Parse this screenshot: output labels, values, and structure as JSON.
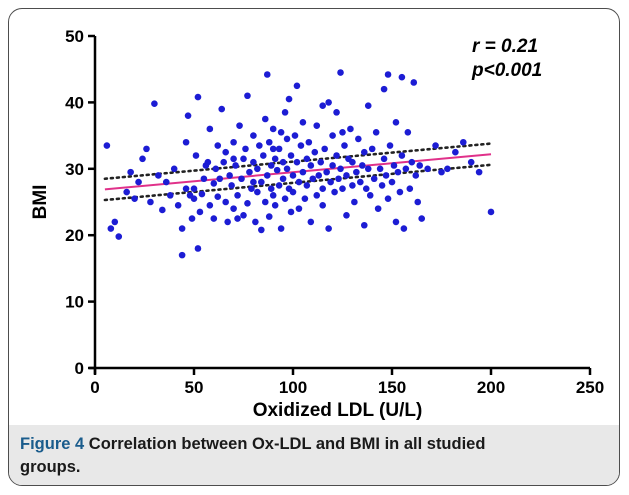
{
  "chart_data": {
    "type": "scatter",
    "xlabel": "Oxidized LDL (U/L)",
    "ylabel": "BMI",
    "xlim": [
      0,
      250
    ],
    "ylim": [
      0,
      50
    ],
    "xticks": [
      "0",
      "50",
      "100",
      "150",
      "200",
      "250"
    ],
    "yticks": [
      "0",
      "10",
      "20",
      "30",
      "40",
      "50"
    ],
    "grid": false,
    "marker_color": "#1c1cd4",
    "fit_color": "#e0318a",
    "ci_color": "#222222",
    "annotations": [
      "r = 0.21",
      "p<0.001"
    ],
    "fit_line": {
      "x": [
        5,
        200
      ],
      "y": [
        26.9,
        32.2
      ]
    },
    "ci_upper": {
      "x": [
        5,
        200
      ],
      "y": [
        28.5,
        33.8
      ]
    },
    "ci_lower": {
      "x": [
        5,
        200
      ],
      "y": [
        25.3,
        30.6
      ]
    },
    "points": [
      [
        6,
        33.5
      ],
      [
        8,
        21.0
      ],
      [
        10,
        22.0
      ],
      [
        12,
        19.8
      ],
      [
        16,
        26.5
      ],
      [
        18,
        29.5
      ],
      [
        20,
        25.5
      ],
      [
        22,
        28.0
      ],
      [
        24,
        31.5
      ],
      [
        26,
        33.0
      ],
      [
        28,
        25.0
      ],
      [
        30,
        39.8
      ],
      [
        32,
        29.0
      ],
      [
        34,
        23.8
      ],
      [
        36,
        28.0
      ],
      [
        38,
        26.0
      ],
      [
        40,
        30.0
      ],
      [
        42,
        24.5
      ],
      [
        44,
        21.0
      ],
      [
        44,
        17.0
      ],
      [
        46,
        27.0
      ],
      [
        46,
        34.0
      ],
      [
        47,
        38.0
      ],
      [
        48,
        26.0
      ],
      [
        49,
        22.5
      ],
      [
        50,
        27.0
      ],
      [
        50,
        25.5
      ],
      [
        51,
        32.0
      ],
      [
        52,
        40.8
      ],
      [
        52,
        18.0
      ],
      [
        53,
        23.5
      ],
      [
        54,
        26.2
      ],
      [
        55,
        28.5
      ],
      [
        56,
        30.5
      ],
      [
        57,
        31.0
      ],
      [
        58,
        24.5
      ],
      [
        58,
        36.0
      ],
      [
        60,
        27.8
      ],
      [
        60,
        22.5
      ],
      [
        61,
        30.0
      ],
      [
        62,
        25.8
      ],
      [
        62,
        33.5
      ],
      [
        63,
        28.5
      ],
      [
        64,
        39.0
      ],
      [
        65,
        31.0
      ],
      [
        66,
        25.0
      ],
      [
        66,
        32.5
      ],
      [
        67,
        22.0
      ],
      [
        68,
        29.0
      ],
      [
        69,
        27.5
      ],
      [
        70,
        34.0
      ],
      [
        70,
        24.0
      ],
      [
        71,
        30.5
      ],
      [
        72,
        22.5
      ],
      [
        72,
        26.0
      ],
      [
        73,
        36.5
      ],
      [
        74,
        28.5
      ],
      [
        75,
        31.5
      ],
      [
        75,
        23.0
      ],
      [
        76,
        33.0
      ],
      [
        77,
        24.8
      ],
      [
        77,
        41.0
      ],
      [
        78,
        29.5
      ],
      [
        79,
        27.0
      ],
      [
        80,
        31.0
      ],
      [
        80,
        35.0
      ],
      [
        81,
        22.0
      ],
      [
        82,
        26.5
      ],
      [
        82,
        30.0
      ],
      [
        83,
        33.5
      ],
      [
        84,
        20.8
      ],
      [
        84,
        28.0
      ],
      [
        85,
        32.0
      ],
      [
        86,
        37.5
      ],
      [
        86,
        25.0
      ],
      [
        87,
        44.2
      ],
      [
        87,
        29.0
      ],
      [
        88,
        34.0
      ],
      [
        88,
        22.8
      ],
      [
        89,
        30.5
      ],
      [
        89,
        27.0
      ],
      [
        90,
        36.0
      ],
      [
        90,
        26.0
      ],
      [
        91,
        31.5
      ],
      [
        91,
        24.5
      ],
      [
        92,
        29.8
      ],
      [
        93,
        33.0
      ],
      [
        93,
        27.5
      ],
      [
        94,
        35.5
      ],
      [
        94,
        21.0
      ],
      [
        95,
        28.5
      ],
      [
        95,
        31.0
      ],
      [
        96,
        38.5
      ],
      [
        96,
        25.5
      ],
      [
        97,
        30.0
      ],
      [
        97,
        34.5
      ],
      [
        98,
        27.0
      ],
      [
        98,
        40.5
      ],
      [
        99,
        23.5
      ],
      [
        99,
        32.0
      ],
      [
        100,
        29.0
      ],
      [
        100,
        26.5
      ],
      [
        101,
        35.0
      ],
      [
        102,
        31.0
      ],
      [
        102,
        42.5
      ],
      [
        103,
        28.0
      ],
      [
        103,
        24.0
      ],
      [
        104,
        33.5
      ],
      [
        105,
        29.5
      ],
      [
        105,
        37.0
      ],
      [
        106,
        25.5
      ],
      [
        107,
        31.5
      ],
      [
        107,
        27.5
      ],
      [
        108,
        34.0
      ],
      [
        109,
        22.0
      ],
      [
        109,
        30.5
      ],
      [
        110,
        28.5
      ],
      [
        111,
        32.5
      ],
      [
        112,
        26.0
      ],
      [
        112,
        36.5
      ],
      [
        113,
        29.0
      ],
      [
        114,
        31.0
      ],
      [
        115,
        24.5
      ],
      [
        115,
        27.0
      ],
      [
        116,
        33.0
      ],
      [
        117,
        29.5
      ],
      [
        118,
        40.0
      ],
      [
        118,
        21.0
      ],
      [
        119,
        28.0
      ],
      [
        120,
        35.0
      ],
      [
        120,
        30.5
      ],
      [
        121,
        26.5
      ],
      [
        122,
        32.0
      ],
      [
        122,
        38.5
      ],
      [
        123,
        28.5
      ],
      [
        124,
        30.0
      ],
      [
        124,
        44.5
      ],
      [
        125,
        27.0
      ],
      [
        126,
        33.5
      ],
      [
        127,
        29.0
      ],
      [
        127,
        23.0
      ],
      [
        128,
        31.5
      ],
      [
        129,
        36.0
      ],
      [
        130,
        27.5
      ],
      [
        130,
        31.0
      ],
      [
        131,
        25.0
      ],
      [
        132,
        29.5
      ],
      [
        133,
        34.5
      ],
      [
        134,
        28.0
      ],
      [
        135,
        30.5
      ],
      [
        136,
        32.5
      ],
      [
        136,
        21.5
      ],
      [
        137,
        27.0
      ],
      [
        138,
        39.5
      ],
      [
        138,
        30.0
      ],
      [
        139,
        26.0
      ],
      [
        140,
        33.0
      ],
      [
        141,
        28.5
      ],
      [
        142,
        35.5
      ],
      [
        143,
        24.0
      ],
      [
        144,
        30.0
      ],
      [
        145,
        27.5
      ],
      [
        146,
        42.0
      ],
      [
        146,
        31.5
      ],
      [
        147,
        29.0
      ],
      [
        148,
        44.2
      ],
      [
        148,
        25.5
      ],
      [
        149,
        33.5
      ],
      [
        150,
        28.0
      ],
      [
        151,
        30.5
      ],
      [
        152,
        37.0
      ],
      [
        152,
        22.0
      ],
      [
        153,
        29.5
      ],
      [
        154,
        26.5
      ],
      [
        155,
        43.8
      ],
      [
        155,
        32.0
      ],
      [
        156,
        21.0
      ],
      [
        157,
        30.0
      ],
      [
        158,
        35.5
      ],
      [
        159,
        27.0
      ],
      [
        160,
        31.0
      ],
      [
        161,
        43.0
      ],
      [
        162,
        29.0
      ],
      [
        163,
        25.0
      ],
      [
        164,
        30.5
      ],
      [
        165,
        22.5
      ],
      [
        168,
        30.0
      ],
      [
        172,
        33.5
      ],
      [
        175,
        29.5
      ],
      [
        178,
        30.0
      ],
      [
        182,
        32.5
      ],
      [
        186,
        34.0
      ],
      [
        190,
        31.0
      ],
      [
        194,
        29.5
      ],
      [
        200,
        23.5
      ],
      [
        125,
        35.5
      ],
      [
        115,
        39.5
      ],
      [
        90,
        33.0
      ],
      [
        80,
        28.0
      ],
      [
        70,
        31.5
      ]
    ]
  },
  "caption": {
    "lead": "Figure 4",
    "text": "Correlation between Ox-LDL and BMI in all studied groups."
  }
}
